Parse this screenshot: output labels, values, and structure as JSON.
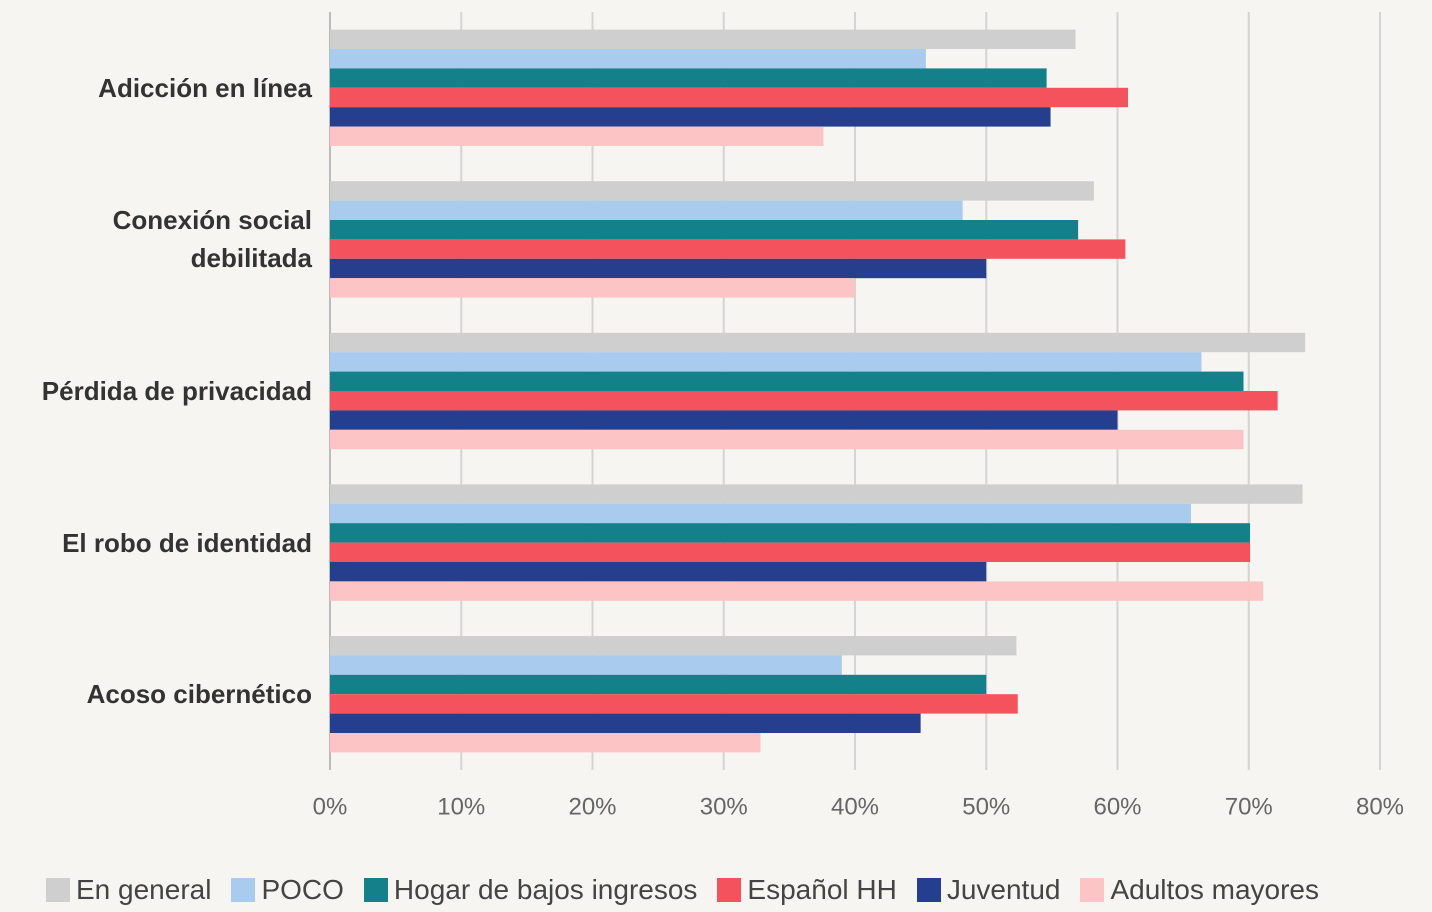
{
  "chart_data": {
    "type": "hbar",
    "categories": [
      "Adicción en línea",
      "Conexión social debilitada",
      "Pérdida de privacidad",
      "El robo de identidad",
      "Acoso cibernético"
    ],
    "series": [
      {
        "name": "En general",
        "color": "#d0cfcf",
        "values": [
          56.8,
          58.2,
          74.3,
          74.1,
          52.3
        ]
      },
      {
        "name": "POCO",
        "color": "#a9cbed",
        "values": [
          45.4,
          48.2,
          66.4,
          65.6,
          39
        ]
      },
      {
        "name": "Hogar de bajos ingresos",
        "color": "#14808a",
        "values": [
          54.6,
          57,
          69.6,
          70.1,
          50
        ]
      },
      {
        "name": "Español HH",
        "color": "#f4535d",
        "values": [
          60.8,
          60.6,
          72.2,
          70.1,
          52.4
        ]
      },
      {
        "name": "Juventud",
        "color": "#253f8e",
        "values": [
          54.9,
          50,
          60,
          50,
          45
        ]
      },
      {
        "name": "Adultos mayores",
        "color": "#fcc4c4",
        "values": [
          37.6,
          40,
          69.6,
          71.1,
          32.8
        ]
      }
    ],
    "xlim": [
      0,
      80
    ],
    "xticks": [
      {
        "value": 0,
        "label": "0%"
      },
      {
        "value": 10,
        "label": "10%"
      },
      {
        "value": 20,
        "label": "20%"
      },
      {
        "value": 30,
        "label": "30%"
      },
      {
        "value": 40,
        "label": "40%"
      },
      {
        "value": 50,
        "label": "50%"
      },
      {
        "value": 60,
        "label": "60%"
      },
      {
        "value": 70,
        "label": "70%"
      },
      {
        "value": 80,
        "label": "80%"
      }
    ],
    "grid": true,
    "legend": "bottom"
  }
}
